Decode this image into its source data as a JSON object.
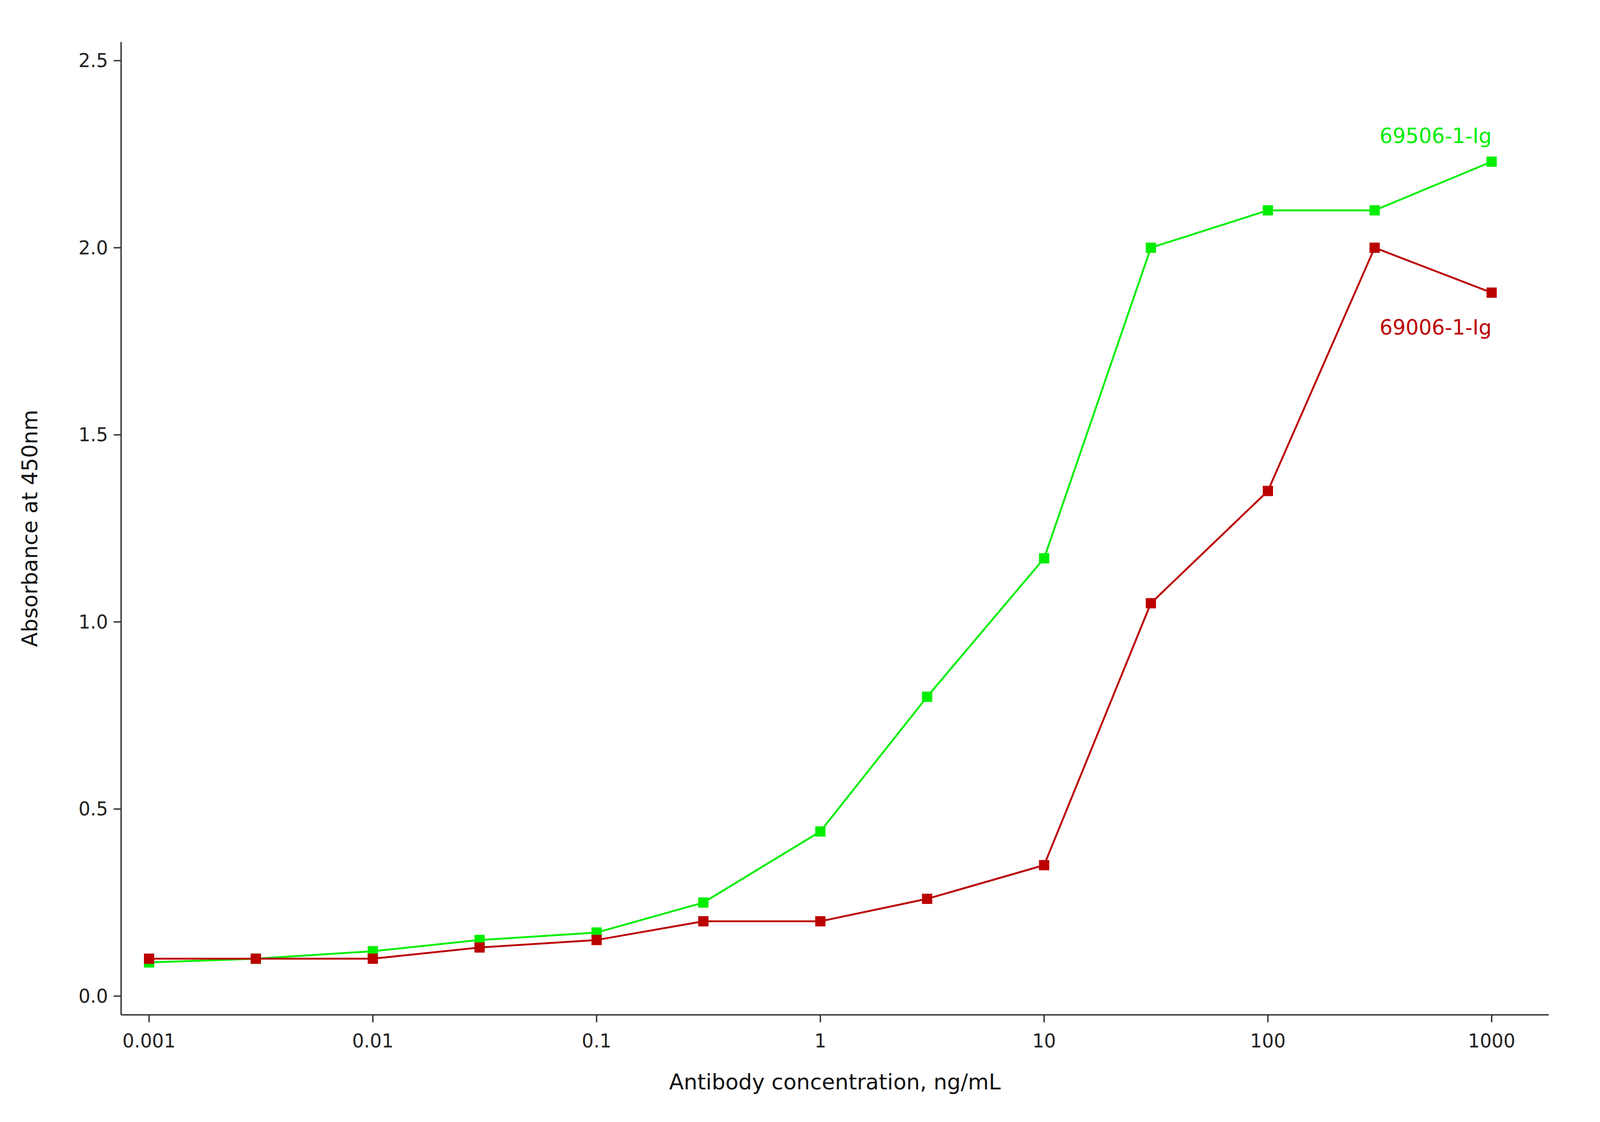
{
  "chart_data": {
    "type": "line",
    "x": [
      0.001,
      0.003,
      0.01,
      0.03,
      0.1,
      0.3,
      1,
      3,
      10,
      30,
      100,
      300,
      1000
    ],
    "series": [
      {
        "name": "69506-1-Ig",
        "color": "#00ee00",
        "marker": "square",
        "values": [
          0.09,
          0.1,
          0.12,
          0.15,
          0.17,
          0.25,
          0.44,
          0.8,
          1.17,
          2.0,
          2.1,
          2.1,
          2.23
        ]
      },
      {
        "name": "69006-1-Ig",
        "color": "#bb0000",
        "marker": "square",
        "values": [
          0.1,
          0.1,
          0.1,
          0.13,
          0.15,
          0.2,
          0.2,
          0.26,
          0.35,
          1.05,
          1.35,
          2.0,
          1.88
        ]
      }
    ],
    "x_label": "Antibody concentration, ng/mL",
    "y_label": "Absorbance at 450nm",
    "log": "x",
    "xlim": [
      0.00075,
      1800
    ],
    "xticks": [
      0.001,
      0.01,
      0.1,
      1,
      10,
      100,
      1000
    ],
    "ylim": [
      -0.05,
      2.55
    ],
    "yticks": [
      {
        "value": 0.0,
        "label": "0.0"
      },
      0.5,
      {
        "value": 1.0,
        "label": "1.0"
      },
      1.5,
      {
        "value": 2.0,
        "label": "2.0"
      },
      2.5
    ],
    "grid": false
  }
}
